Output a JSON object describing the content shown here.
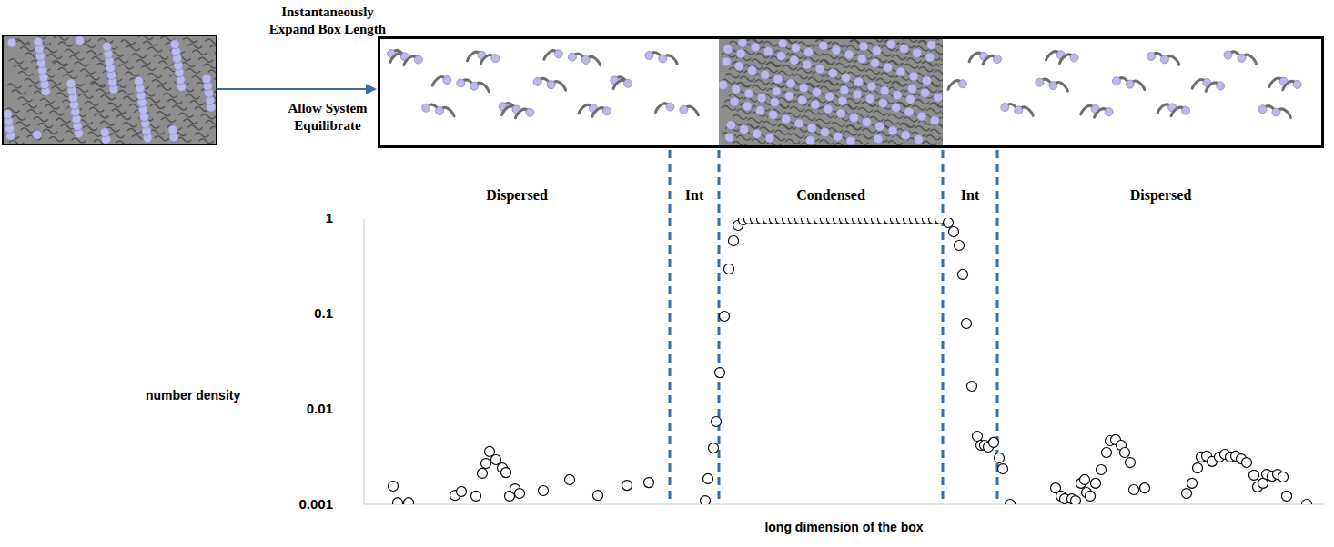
{
  "chart_data": {
    "type": "scatter",
    "x_label": "long dimension of the box",
    "y_label": "number density",
    "log": "y",
    "grid": false,
    "tick_labels": "y",
    "marker": "open_circle",
    "color": "#000000",
    "xlim": [
      0,
      1055
    ],
    "ylim": [
      0.001,
      1
    ],
    "yticks": [
      0.001,
      0.01,
      0.1,
      1
    ],
    "boundaries": [
      336,
      390,
      636,
      696
    ],
    "region_labels": [
      "Dispersed",
      "Int",
      "Condensed",
      "Int",
      "Dispersed"
    ],
    "annotations": [
      "Instantaneously Expand Box Length",
      "Allow System Equilibrate"
    ],
    "x": [
      32,
      37,
      49,
      100,
      107,
      123,
      130,
      134,
      138,
      145,
      152,
      156,
      160,
      166,
      171,
      197,
      226,
      257,
      289,
      313,
      375,
      378,
      384,
      387,
      391,
      396,
      401,
      406,
      411,
      417,
      423,
      430,
      437,
      444,
      451,
      458,
      465,
      472,
      479,
      486,
      493,
      500,
      507,
      514,
      521,
      528,
      535,
      542,
      549,
      556,
      563,
      570,
      577,
      584,
      591,
      598,
      605,
      612,
      619,
      626,
      633,
      642,
      648,
      654,
      658,
      662,
      668,
      674,
      678,
      682,
      686,
      692,
      698,
      702,
      710,
      760,
      766,
      770,
      778,
      782,
      788,
      792,
      794,
      798,
      804,
      810,
      816,
      820,
      826,
      832,
      836,
      842,
      846,
      858,
      904,
      910,
      916,
      920,
      926,
      932,
      940,
      946,
      952,
      958,
      964,
      970,
      978,
      982,
      988,
      992,
      998,
      1004,
      1010,
      1014,
      1036
    ],
    "values": [
      0.00155,
      0.00104,
      0.00104,
      0.00124,
      0.00136,
      0.00122,
      0.00211,
      0.00268,
      0.00357,
      0.00293,
      0.0024,
      0.00215,
      0.00122,
      0.00145,
      0.0013,
      0.00139,
      0.00181,
      0.00124,
      0.00158,
      0.00169,
      0.00109,
      0.00185,
      0.00389,
      0.00736,
      0.024,
      0.0936,
      0.293,
      0.578,
      0.839,
      0.957,
      0.98,
      0.98,
      0.98,
      0.98,
      0.98,
      0.98,
      0.98,
      0.98,
      0.98,
      0.98,
      0.98,
      0.98,
      0.98,
      0.98,
      0.98,
      0.98,
      0.98,
      0.98,
      0.98,
      0.98,
      0.98,
      0.98,
      0.98,
      0.98,
      0.98,
      0.98,
      0.98,
      0.98,
      0.98,
      0.98,
      0.98,
      0.896,
      0.72,
      0.518,
      0.257,
      0.0786,
      0.0173,
      0.00518,
      0.00416,
      0.00416,
      0.00398,
      0.00445,
      0.00306,
      0.00235,
      0.001,
      0.00148,
      0.00122,
      0.00114,
      0.00114,
      0.00109,
      0.00166,
      0.00181,
      0.00133,
      0.00122,
      0.00166,
      0.0023,
      0.00349,
      0.00464,
      0.00475,
      0.00416,
      0.00349,
      0.00274,
      0.00142,
      0.00148,
      0.0013,
      0.00166,
      0.0024,
      0.00313,
      0.0032,
      0.00281,
      0.00313,
      0.00334,
      0.00313,
      0.0032,
      0.00299,
      0.00274,
      0.00202,
      0.00152,
      0.00166,
      0.00206,
      0.00197,
      0.00206,
      0.00193,
      0.00122,
      0.001
    ]
  }
}
